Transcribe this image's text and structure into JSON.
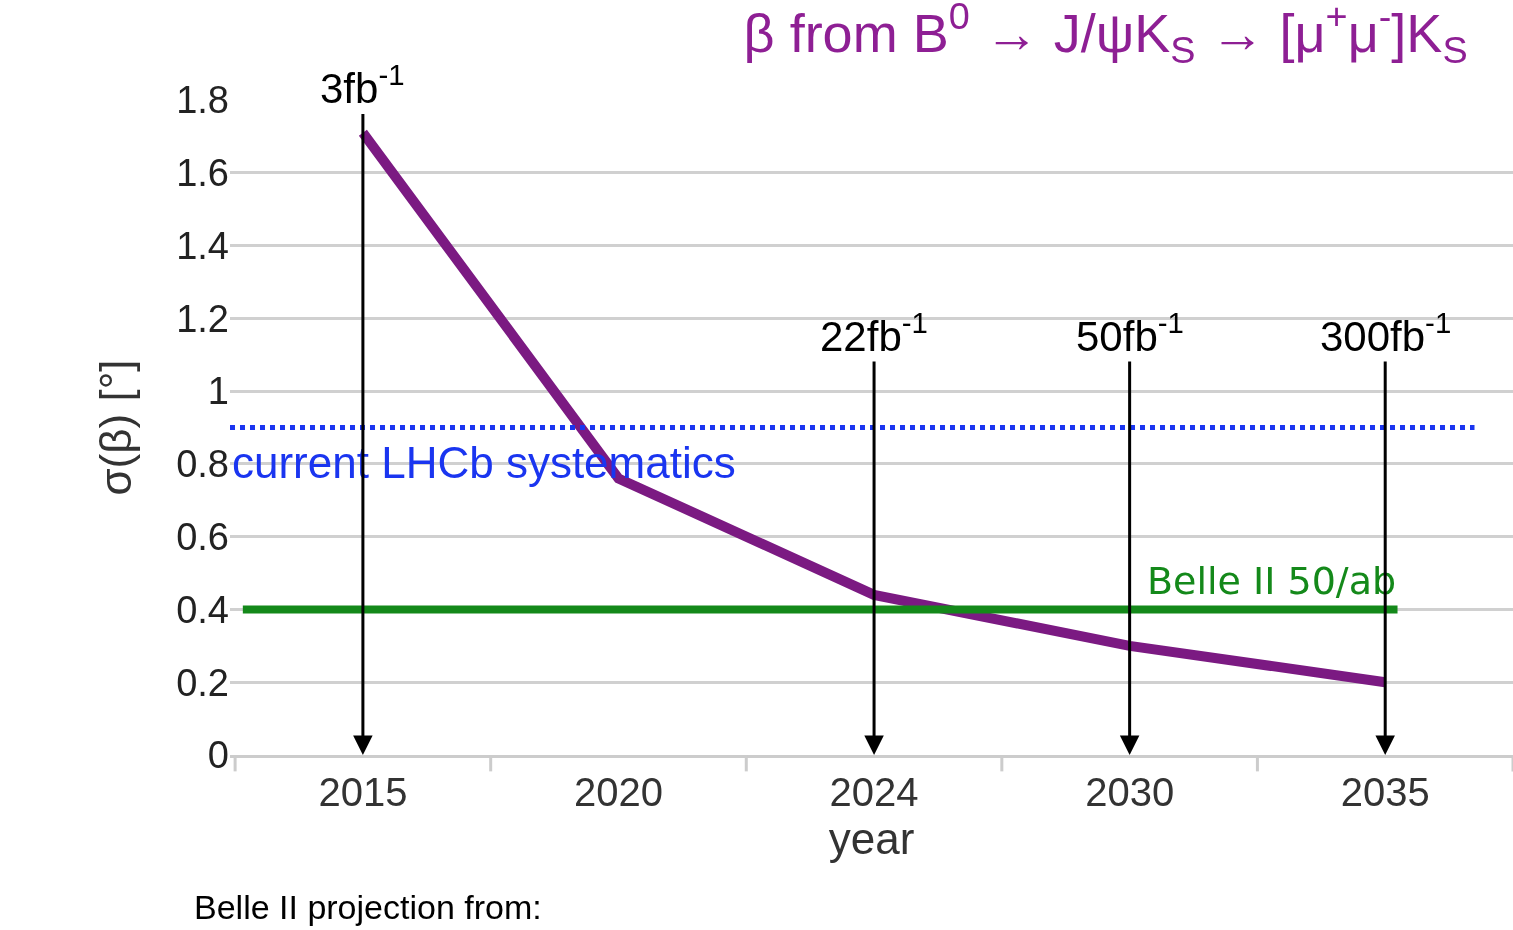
{
  "chart_data": {
    "type": "line",
    "title": "β from B$^{0}$ → J/ψK$_{S}$ → [μ$^{+}$μ$^{-}$]K$_{S}$",
    "ylabel": "σ(β) [°]",
    "xlabel": "year",
    "categories": [
      "2015",
      "2020",
      "2024",
      "2030",
      "2035"
    ],
    "series": [
      {
        "color": "#7b1a82",
        "values": [
          1.71,
          0.76,
          0.44,
          0.3,
          0.2
        ]
      }
    ],
    "ylim": [
      0,
      1.8
    ],
    "yticks": [
      0,
      0.2,
      0.4,
      0.6,
      0.8,
      1,
      1.2,
      1.4,
      1.6,
      1.8
    ],
    "grid": "y",
    "legend": false,
    "marker": "none",
    "line_style": "solid",
    "ref_lines": [
      {
        "axis": "y",
        "value": 0.9,
        "label": "current LHCb systematics",
        "color": "#1a35f0",
        "line_style": "dotted"
      },
      {
        "axis": "y",
        "value": 0.4,
        "label": "Belle II 50/ab",
        "color": "#14891a",
        "line_style": "solid"
      }
    ],
    "annotations": [
      {
        "text": "3fb$^{-1}$",
        "x": "2015"
      },
      {
        "text": "22fb$^{-1}$",
        "x": "2024"
      },
      {
        "text": "50fb$^{-1}$",
        "x": "2030"
      },
      {
        "text": "300fb$^{-1}$",
        "x": "2035"
      },
      "Belle II projection from:"
    ]
  }
}
